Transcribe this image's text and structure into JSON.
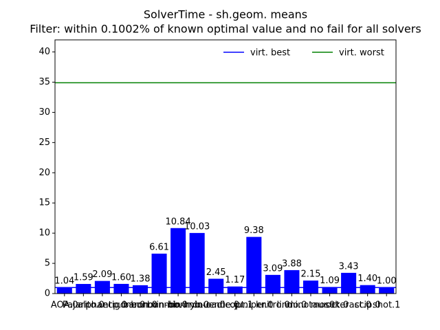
{
  "chart_data": {
    "type": "bar",
    "title": "SolverTime - sh.geom. means",
    "subtitle": "Filter: within 0.1002% of known optimal value and no fail for all solvers",
    "categories": [
      "AOA.0",
      "Pajarito.0",
      "alphaecp.0",
      "antigone.0",
      "baron.0",
      "bonmin-bb.0",
      "bonmin-hyb.0",
      "bonmin-oa.0",
      "couenne.0",
      "dicopt.1",
      "juniper.0",
      "knitro.0",
      "lindo.0",
      "minotaur.0",
      "mosek.0",
      "octeract.0",
      "scip.0",
      "shot.1"
    ],
    "values": [
      1.04,
      1.59,
      2.09,
      1.6,
      1.38,
      6.61,
      10.84,
      10.03,
      2.45,
      1.17,
      9.38,
      3.09,
      3.88,
      2.15,
      1.09,
      3.43,
      1.4,
      1.0
    ],
    "value_labels": [
      "1.04",
      "1.59",
      "2.09",
      "1.60",
      "1.38",
      "6.61",
      "10.84",
      "10.03",
      "2.45",
      "1.17",
      "9.38",
      "3.09",
      "3.88",
      "2.15",
      "1.09",
      "3.43",
      "1.40",
      "1.00"
    ],
    "color": "#0000ff",
    "reference_lines": [
      {
        "name": "virt. best",
        "value": 1.0,
        "color": "#0000ff"
      },
      {
        "name": "virt. worst",
        "value": 34.9,
        "color": "#008000"
      }
    ],
    "legend": "upper right",
    "ylim": [
      0,
      42
    ],
    "yticks": [
      0,
      5,
      10,
      15,
      20,
      25,
      30,
      35,
      40
    ]
  }
}
